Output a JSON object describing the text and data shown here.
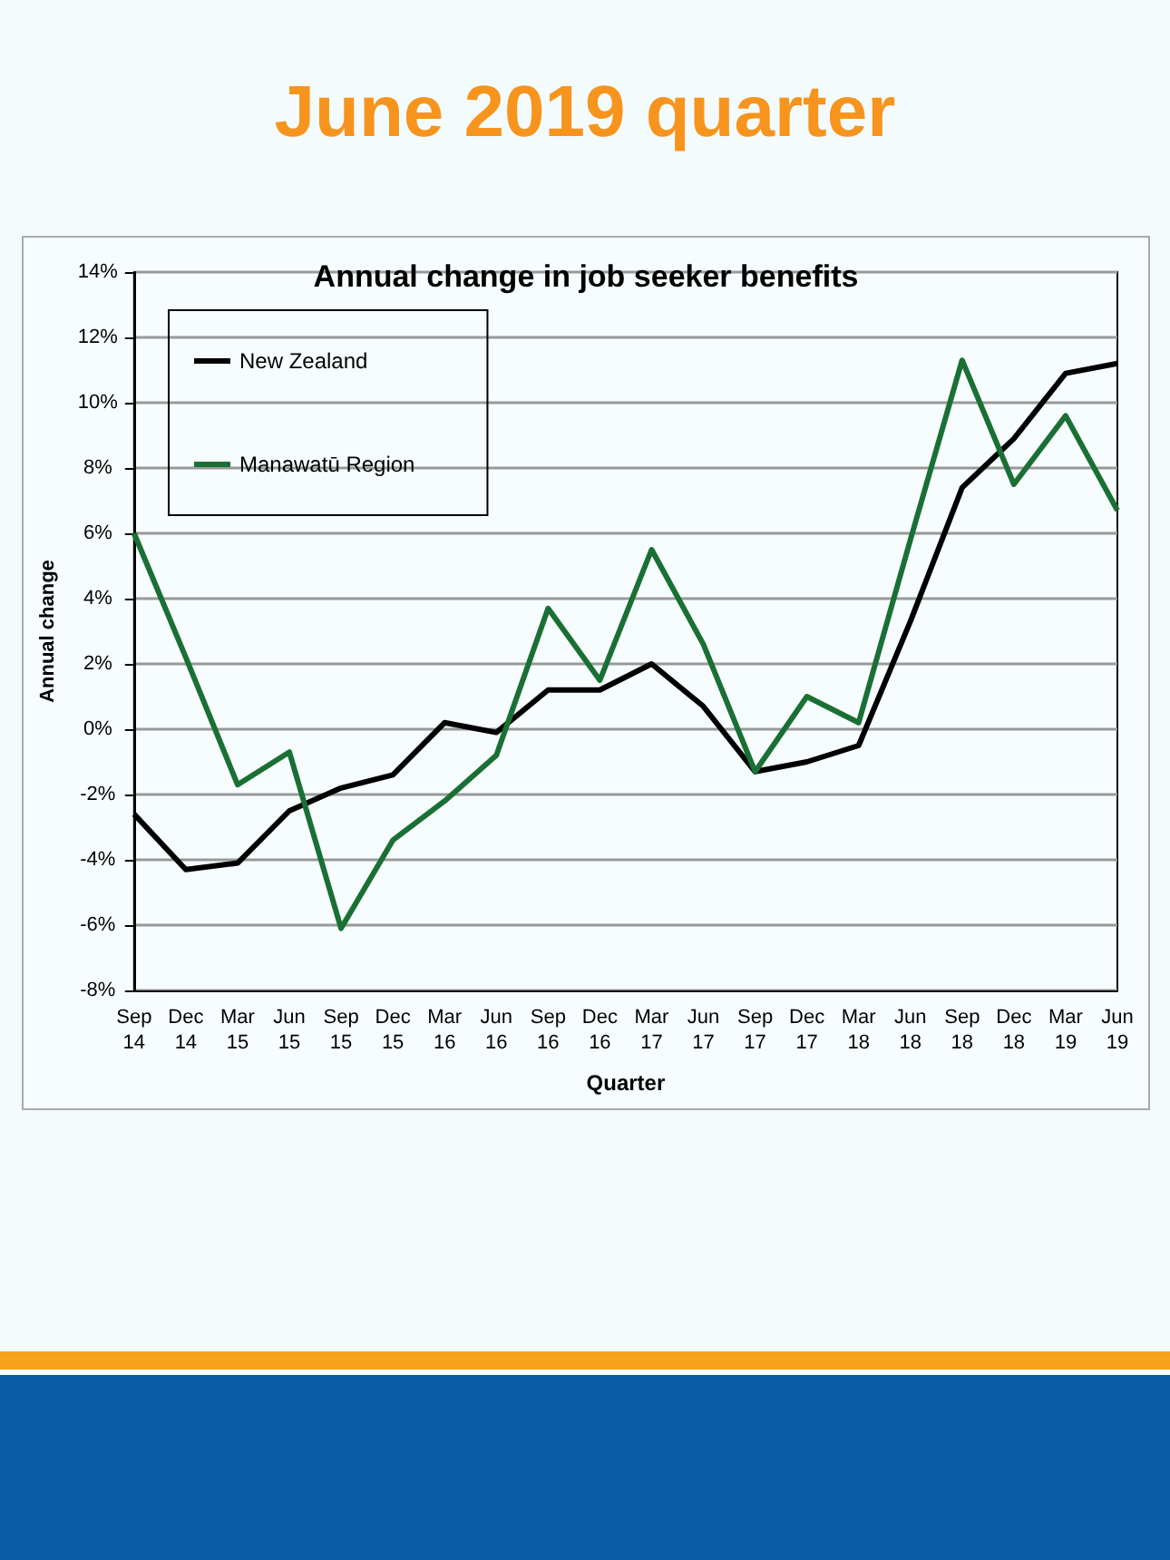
{
  "chart_data": {
    "type": "line",
    "title": "June 2019 quarter",
    "subtitle": "Annual change in job seeker benefits",
    "xlabel": "Quarter",
    "ylabel": "Annual change",
    "categories": [
      "Sep 14",
      "Dec 14",
      "Mar 15",
      "Jun 15",
      "Sep 15",
      "Dec 15",
      "Mar 16",
      "Jun 16",
      "Sep 16",
      "Dec 16",
      "Mar 17",
      "Jun 17",
      "Sep 17",
      "Dec 17",
      "Mar 18",
      "Jun 18",
      "Sep 18",
      "Dec 18",
      "Mar 19",
      "Jun 19"
    ],
    "series": [
      {
        "name": "New Zealand",
        "color": "#000000",
        "values": [
          -2.6,
          -4.3,
          -4.1,
          -2.5,
          -1.8,
          -1.4,
          0.2,
          -0.1,
          1.2,
          1.2,
          2.0,
          0.7,
          -1.3,
          -1.0,
          -0.5,
          3.3,
          7.4,
          8.9,
          10.9,
          11.2
        ]
      },
      {
        "name": "Manawatū Region",
        "color": "#1a7034",
        "values": [
          6.0,
          2.2,
          -1.7,
          -0.7,
          -6.1,
          -3.4,
          -2.2,
          -0.8,
          3.7,
          1.5,
          5.5,
          2.6,
          -1.3,
          1.0,
          0.2,
          5.8,
          11.3,
          7.5,
          9.6,
          6.7
        ]
      }
    ],
    "ylim": [
      -8,
      14
    ],
    "yticks": [
      {
        "value": -8,
        "label": "-8%"
      },
      {
        "value": -6,
        "label": "-6%"
      },
      {
        "value": -4,
        "label": "-4%"
      },
      {
        "value": -2,
        "label": "-2%"
      },
      {
        "value": 0,
        "label": "0%"
      },
      {
        "value": 2,
        "label": "2%"
      },
      {
        "value": 4,
        "label": "4%"
      },
      {
        "value": 6,
        "label": "6%"
      },
      {
        "value": 8,
        "label": "8%"
      },
      {
        "value": 10,
        "label": "10%"
      },
      {
        "value": 12,
        "label": "12%"
      },
      {
        "value": 14,
        "label": "14%"
      }
    ],
    "grid": "y",
    "legend": "top left",
    "marker": "none",
    "line_style": "solid"
  }
}
